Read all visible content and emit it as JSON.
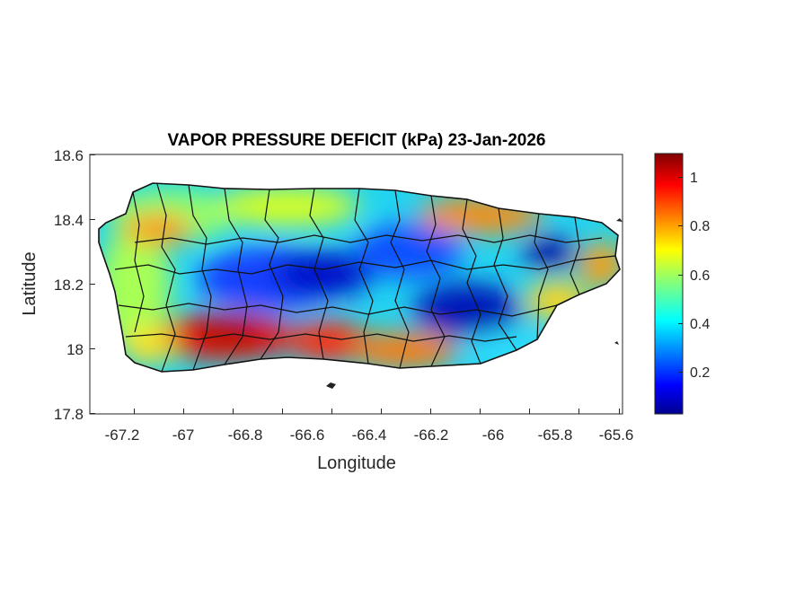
{
  "title": "VAPOR PRESSURE DEFICIT (kPa) 23-Jan-2026",
  "xlabel": "Longitude",
  "ylabel": "Latitude",
  "x_ticks": [
    "-67.2",
    "-67",
    "-66.8",
    "-66.6",
    "-66.4",
    "-66.2",
    "-66",
    "-65.8",
    "-65.6"
  ],
  "y_ticks": [
    "18.6",
    "18.4",
    "18.2",
    "18",
    "17.8"
  ],
  "colorbar_ticks": [
    "1",
    "0.8",
    "0.6",
    "0.4",
    "0.2"
  ],
  "chart_data": {
    "type": "heatmap",
    "title": "VAPOR PRESSURE DEFICIT (kPa) 23-Jan-2026",
    "xlabel": "Longitude",
    "ylabel": "Latitude",
    "xlim": [
      -67.3,
      -65.58
    ],
    "ylim": [
      17.8,
      18.6
    ],
    "colorbar_range": [
      0.03,
      1.1
    ],
    "colorbar_ticks": [
      0.2,
      0.4,
      0.6,
      0.8,
      1
    ],
    "colormap": "jet",
    "regions": [
      {
        "lon": -66.85,
        "lat": 18.05,
        "value": 1.05
      },
      {
        "lon": -66.55,
        "lat": 18.03,
        "value": 0.95
      },
      {
        "lon": -66.35,
        "lat": 17.98,
        "value": 0.9
      },
      {
        "lon": -66.05,
        "lat": 18.38,
        "value": 0.85
      },
      {
        "lon": -65.65,
        "lat": 18.25,
        "value": 0.8
      },
      {
        "lon": -67.1,
        "lat": 18.38,
        "value": 0.8
      },
      {
        "lon": -66.75,
        "lat": 18.2,
        "value": 0.2
      },
      {
        "lon": -66.5,
        "lat": 18.25,
        "value": 0.15
      },
      {
        "lon": -66.3,
        "lat": 18.3,
        "value": 0.25
      },
      {
        "lon": -66.05,
        "lat": 18.12,
        "value": 0.1
      },
      {
        "lon": -65.8,
        "lat": 18.3,
        "value": 0.1
      },
      {
        "lon": -67.18,
        "lat": 18.15,
        "value": 0.55
      },
      {
        "lon": -66.9,
        "lat": 18.43,
        "value": 0.6
      }
    ]
  }
}
